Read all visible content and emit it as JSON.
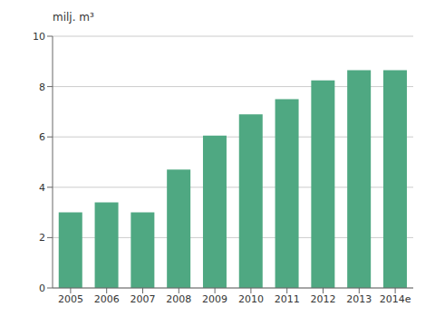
{
  "chart_data": {
    "type": "bar",
    "ylabel": "milj. m³",
    "categories": [
      "2005",
      "2006",
      "2007",
      "2008",
      "2009",
      "2010",
      "2011",
      "2012",
      "2013",
      "2014e"
    ],
    "values": [
      3.0,
      3.4,
      3.0,
      4.7,
      6.05,
      6.9,
      7.5,
      8.25,
      8.65,
      8.65
    ],
    "color": "#4fa882",
    "ylim": [
      0,
      10
    ],
    "yticks": [
      0,
      2,
      4,
      6,
      8,
      10
    ],
    "grid": true
  }
}
